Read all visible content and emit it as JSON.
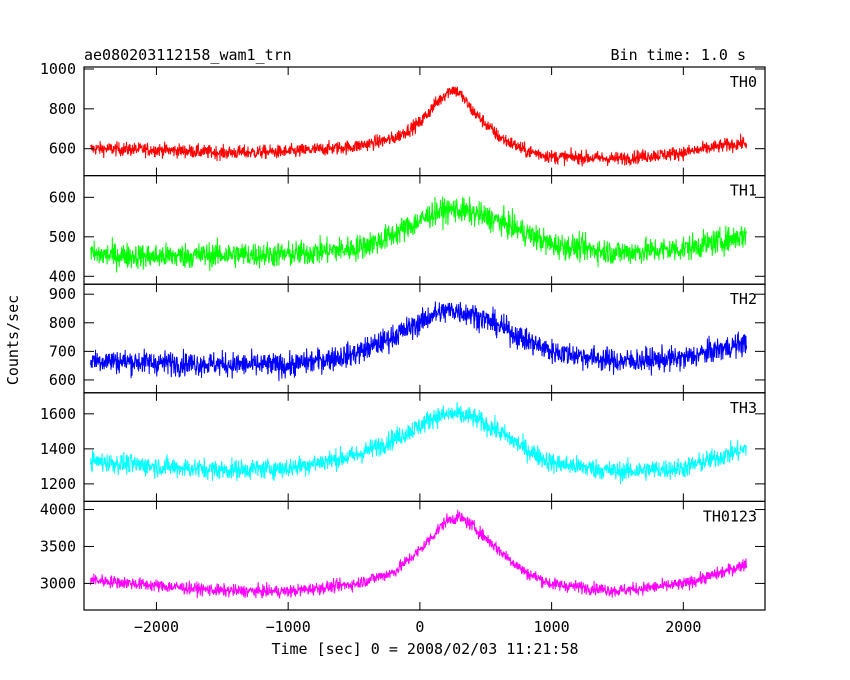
{
  "chart_data": {
    "type": "line",
    "title": "ae080203112158_wam1_trn",
    "bin_time_label": "Bin time: 1.0 s",
    "xlabel": "Time [sec] 0 = 2008/02/03 11:21:58",
    "ylabel": "Counts/sec",
    "xlim": [
      -2550,
      2620
    ],
    "x_ticks": [
      -2000,
      -1000,
      0,
      1000,
      2000
    ],
    "x_tick_labels": [
      "−2000",
      "−1000",
      "0",
      "1000",
      "2000"
    ],
    "x_data_range": [
      -2500,
      2480
    ],
    "grid": false,
    "panels": [
      {
        "name": "TH0",
        "color": "#ff0000",
        "ylim": [
          465,
          1010
        ],
        "y_ticks": [
          600,
          800,
          1000
        ],
        "y_tick_labels": [
          "600",
          "800",
          "1000"
        ],
        "x": [
          -2500,
          -2000,
          -1500,
          -1000,
          -500,
          -200,
          0,
          100,
          200,
          250,
          300,
          400,
          600,
          800,
          1000,
          1500,
          2000,
          2300,
          2480
        ],
        "y": [
          600,
          595,
          580,
          585,
          610,
          650,
          730,
          810,
          880,
          900,
          880,
          790,
          660,
          590,
          560,
          550,
          580,
          615,
          630
        ],
        "noise": 45
      },
      {
        "name": "TH1",
        "color": "#00ff00",
        "ylim": [
          380,
          655
        ],
        "y_ticks": [
          400,
          500,
          600
        ],
        "y_tick_labels": [
          "400",
          "500",
          "600"
        ],
        "x": [
          -2500,
          -2000,
          -1500,
          -1000,
          -500,
          -300,
          0,
          100,
          250,
          400,
          600,
          800,
          1000,
          1500,
          2000,
          2300,
          2480
        ],
        "y": [
          455,
          450,
          455,
          455,
          470,
          490,
          540,
          560,
          570,
          560,
          540,
          510,
          480,
          460,
          470,
          490,
          505
        ],
        "noise": 42
      },
      {
        "name": "TH2",
        "color": "#0000ff",
        "ylim": [
          555,
          935
        ],
        "y_ticks": [
          600,
          700,
          800,
          900
        ],
        "y_tick_labels": [
          "600",
          "700",
          "800",
          "900"
        ],
        "x": [
          -2500,
          -2000,
          -1500,
          -1000,
          -500,
          -300,
          0,
          100,
          250,
          400,
          600,
          800,
          1000,
          1500,
          2000,
          2300,
          2480
        ],
        "y": [
          670,
          660,
          655,
          650,
          690,
          730,
          800,
          830,
          845,
          830,
          790,
          740,
          700,
          665,
          675,
          710,
          730
        ],
        "noise": 55
      },
      {
        "name": "TH3",
        "color": "#00ffff",
        "ylim": [
          1100,
          1720
        ],
        "y_ticks": [
          1200,
          1400,
          1600
        ],
        "y_tick_labels": [
          "1200",
          "1400",
          "1600"
        ],
        "x": [
          -2500,
          -2000,
          -1500,
          -1000,
          -500,
          -300,
          0,
          100,
          250,
          400,
          600,
          800,
          1000,
          1500,
          2000,
          2300,
          2480
        ],
        "y": [
          1330,
          1300,
          1280,
          1290,
          1360,
          1420,
          1530,
          1580,
          1600,
          1580,
          1500,
          1400,
          1320,
          1270,
          1290,
          1360,
          1400
        ],
        "noise": 75
      },
      {
        "name": "TH0123",
        "color": "#ff00ff",
        "ylim": [
          2640,
          4110
        ],
        "y_ticks": [
          3000,
          3500,
          4000
        ],
        "y_tick_labels": [
          "3000",
          "3500",
          "4000"
        ],
        "x": [
          -2500,
          -2000,
          -1500,
          -1000,
          -500,
          -200,
          0,
          100,
          200,
          300,
          400,
          600,
          800,
          1000,
          1500,
          2000,
          2300,
          2480
        ],
        "y": [
          3050,
          2970,
          2900,
          2890,
          2990,
          3150,
          3450,
          3650,
          3850,
          3900,
          3780,
          3450,
          3150,
          2990,
          2900,
          2990,
          3150,
          3270
        ],
        "noise": 110
      }
    ]
  }
}
